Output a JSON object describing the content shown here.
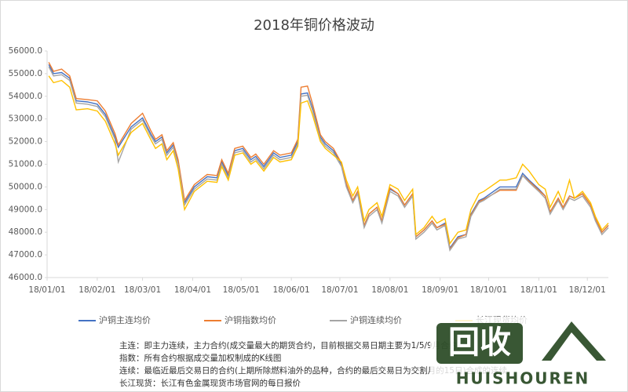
{
  "chart_data": {
    "type": "line",
    "title": "2018年铜价格波动",
    "x": [
      "18/01/02",
      "18/01/05",
      "18/01/10",
      "18/01/15",
      "18/01/19",
      "18/01/26",
      "18/02/01",
      "18/02/06",
      "18/02/12",
      "18/02/14",
      "18/02/22",
      "18/03/01",
      "18/03/06",
      "18/03/09",
      "18/03/13",
      "18/03/16",
      "18/03/20",
      "18/03/23",
      "18/03/27",
      "18/04/02",
      "18/04/10",
      "18/04/16",
      "18/04/19",
      "18/04/23",
      "18/04/27",
      "18/05/02",
      "18/05/07",
      "18/05/10",
      "18/05/15",
      "18/05/21",
      "18/05/25",
      "18/06/01",
      "18/06/05",
      "18/06/07",
      "18/06/11",
      "18/06/14",
      "18/06/19",
      "18/06/22",
      "18/06/27",
      "18/07/02",
      "18/07/05",
      "18/07/09",
      "18/07/12",
      "18/07/16",
      "18/07/19",
      "18/07/24",
      "18/07/27",
      "18/08/01",
      "18/08/06",
      "18/08/10",
      "18/08/15",
      "18/08/17",
      "18/08/22",
      "18/08/27",
      "18/08/30",
      "18/09/04",
      "18/09/07",
      "18/09/12",
      "18/09/17",
      "18/09/20",
      "18/09/25",
      "18/09/28",
      "18/10/08",
      "18/10/12",
      "18/10/18",
      "18/10/22",
      "18/10/26",
      "18/11/01",
      "18/11/05",
      "18/11/08",
      "18/11/13",
      "18/11/16",
      "18/11/20",
      "18/11/23",
      "18/11/28",
      "18/12/03",
      "18/12/06",
      "18/12/10",
      "18/12/14"
    ],
    "series": [
      {
        "name": "沪铜主连均价",
        "color": "#4472c4",
        "values": [
          55400,
          55000,
          55050,
          54800,
          53800,
          53750,
          53650,
          53200,
          52200,
          51750,
          52650,
          53050,
          52350,
          52000,
          52200,
          51500,
          51850,
          51100,
          49300,
          50000,
          50450,
          50400,
          51100,
          50500,
          51600,
          51700,
          51200,
          51350,
          50900,
          51500,
          51300,
          51400,
          52000,
          54100,
          54150,
          53500,
          52200,
          51900,
          51600,
          51000,
          50100,
          49400,
          49800,
          48300,
          48800,
          49100,
          48500,
          49900,
          49700,
          49200,
          49700,
          47800,
          48100,
          48500,
          48200,
          48400,
          47300,
          47800,
          47900,
          48800,
          49400,
          49500,
          50000,
          50000,
          50000,
          50600,
          50300,
          49900,
          49600,
          48900,
          49500,
          49100,
          49600,
          49500,
          49700,
          49200,
          48600,
          48000,
          48300
        ]
      },
      {
        "name": "沪铜指数均价",
        "color": "#ed7d31",
        "values": [
          55500,
          55100,
          55200,
          54900,
          53900,
          53850,
          53800,
          53350,
          52350,
          51850,
          52800,
          53250,
          52500,
          52100,
          52300,
          51600,
          51950,
          51200,
          49400,
          50100,
          50550,
          50500,
          51200,
          50600,
          51700,
          51800,
          51300,
          51450,
          51000,
          51600,
          51400,
          51500,
          52100,
          54400,
          54450,
          53700,
          52300,
          52000,
          51700,
          51050,
          50150,
          49400,
          49800,
          48300,
          48800,
          49100,
          48500,
          49950,
          49700,
          49200,
          49700,
          47800,
          48100,
          48500,
          48200,
          48350,
          47250,
          47750,
          47900,
          48750,
          49350,
          49450,
          49850,
          49850,
          49850,
          50500,
          50250,
          49850,
          49600,
          48900,
          49500,
          49100,
          49600,
          49500,
          49700,
          49200,
          48600,
          48000,
          48300
        ]
      },
      {
        "name": "沪铜连续均价",
        "color": "#a5a5a5",
        "values": [
          55300,
          54900,
          54950,
          54700,
          53700,
          53650,
          53550,
          53100,
          52100,
          51100,
          52550,
          52950,
          52250,
          51900,
          52100,
          51400,
          51750,
          51000,
          49200,
          49900,
          50350,
          50300,
          51000,
          50400,
          51500,
          51600,
          51100,
          51250,
          50800,
          51400,
          51200,
          51300,
          51900,
          54000,
          54050,
          53400,
          52100,
          51800,
          51500,
          50900,
          50000,
          49300,
          49700,
          48200,
          48700,
          49000,
          48400,
          49800,
          49600,
          49100,
          49600,
          47700,
          48000,
          48400,
          48100,
          48300,
          47200,
          47700,
          47800,
          48700,
          49300,
          49400,
          49900,
          49900,
          49900,
          50500,
          50200,
          49800,
          49500,
          48800,
          49400,
          49000,
          49500,
          49400,
          49600,
          49100,
          48500,
          47900,
          48200
        ]
      },
      {
        "name": "长江现货均价",
        "color": "#ffc000",
        "values": [
          54900,
          54600,
          54700,
          54400,
          53400,
          53450,
          53350,
          52900,
          51900,
          51400,
          52400,
          52800,
          52100,
          51700,
          51900,
          51200,
          51600,
          50800,
          49000,
          49800,
          50250,
          50200,
          50900,
          50300,
          51400,
          51500,
          51000,
          51150,
          50700,
          51300,
          51100,
          51200,
          51800,
          53700,
          53800,
          53200,
          52000,
          51700,
          51400,
          51100,
          50300,
          49600,
          50000,
          48500,
          49000,
          49300,
          48700,
          50100,
          49900,
          49400,
          49900,
          47900,
          48200,
          48700,
          48400,
          48600,
          47500,
          48000,
          48100,
          49000,
          49700,
          49800,
          50300,
          50300,
          50400,
          51000,
          50700,
          50100,
          49900,
          49100,
          49800,
          49300,
          50300,
          49500,
          49800,
          49300,
          48700,
          48100,
          48400
        ]
      }
    ],
    "xlim": [
      "18/01/01",
      "18/12/14"
    ],
    "xticks": [
      "18/01/01",
      "18/02/01",
      "18/03/01",
      "18/04/01",
      "18/05/01",
      "18/06/01",
      "18/07/01",
      "18/08/01",
      "18/09/01",
      "18/10/01",
      "18/11/01",
      "18/12/01"
    ],
    "ylim": [
      46000,
      56000
    ],
    "yticks": [
      {
        "value": 46000,
        "label": "46000.0"
      },
      {
        "value": 47000,
        "label": "47000.0"
      },
      {
        "value": 48000,
        "label": "48000.0"
      },
      {
        "value": 49000,
        "label": "49000.0"
      },
      {
        "value": 50000,
        "label": "50000.0"
      },
      {
        "value": 51000,
        "label": "51000.0"
      },
      {
        "value": 52000,
        "label": "52000.0"
      },
      {
        "value": 53000,
        "label": "53000.0"
      },
      {
        "value": 54000,
        "label": "54000.0"
      },
      {
        "value": 55000,
        "label": "55000.0"
      },
      {
        "value": 56000,
        "label": "56000.0"
      }
    ],
    "grid": false,
    "legend": "bottom",
    "notes": [
      "主连：即主力连续，主力合约(成交量最大的期货合约，目前根据交易日期主要为1/5/9月合约)",
      "指数：所有合约根据成交量加权制成的K线图",
      "连续：最临近最后交易日的合约(上期所除燃料油外的品种，合约的最后交易日为交割月的15日)合成的连续",
      "长江现货：长江有色金属现货市场官网的每日报价"
    ]
  },
  "watermark": {
    "logo": "回收",
    "brand": "HUISHOUREN"
  }
}
